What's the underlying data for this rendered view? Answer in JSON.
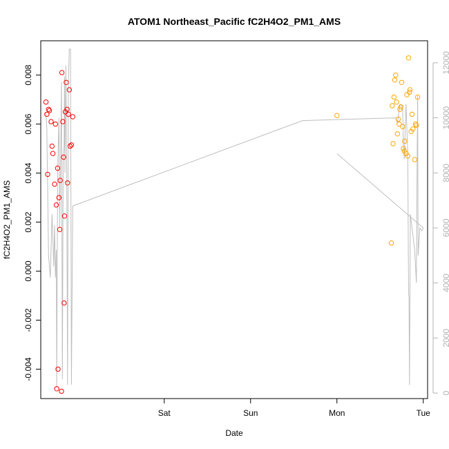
{
  "chart_data": {
    "type": "scatter",
    "title": "ATOM1 Northeast_Pacific fC2H4O2_PM1_AMS",
    "xlabel": "Date",
    "ylabel": "fC2H4O2_PM1_AMS",
    "x_ticks": [
      {
        "value": 1.0,
        "label": "Sat"
      },
      {
        "value": 2.0,
        "label": "Sun"
      },
      {
        "value": 3.0,
        "label": "Mon"
      },
      {
        "value": 4.0,
        "label": "Tue"
      }
    ],
    "y_left": {
      "lim": [
        -0.0052,
        0.0094
      ],
      "ticks": [
        -0.004,
        -0.002,
        0.0,
        0.002,
        0.004,
        0.006,
        0.008
      ],
      "tick_labels": [
        "-0.004",
        "-0.002",
        "0.000",
        "0.002",
        "0.004",
        "0.006",
        "0.008"
      ]
    },
    "y_right": {
      "lim": [
        -200,
        12800
      ],
      "ticks": [
        0,
        2000,
        4000,
        6000,
        8000,
        10000,
        12000
      ],
      "tick_labels": [
        "0",
        "2000",
        "4000",
        "6000",
        "8000",
        "10000",
        "12000"
      ]
    },
    "xlim": [
      -0.43,
      4.05
    ],
    "colors": {
      "red": "#ff0000",
      "orange": "#ffa500",
      "line": "#bebebe",
      "right_axis": "#b3b3b3"
    },
    "series": [
      {
        "color": "red",
        "points": [
          [
            -0.37,
            0.0069
          ],
          [
            -0.36,
            0.0064
          ],
          [
            -0.35,
            0.00395
          ],
          [
            -0.34,
            0.0066
          ],
          [
            -0.33,
            0.00655
          ],
          [
            -0.31,
            0.0061
          ],
          [
            -0.3,
            0.0051
          ],
          [
            -0.29,
            0.0048
          ],
          [
            -0.27,
            0.00355
          ],
          [
            -0.26,
            0.006
          ],
          [
            -0.25,
            0.0027
          ],
          [
            -0.245,
            -0.0048
          ],
          [
            -0.235,
            0.0042
          ],
          [
            -0.23,
            -0.004
          ],
          [
            -0.22,
            0.003
          ],
          [
            -0.21,
            0.0017
          ],
          [
            -0.205,
            0.0037
          ],
          [
            -0.19,
            -0.0049
          ],
          [
            -0.185,
            0.0081
          ],
          [
            -0.175,
            0.0061
          ],
          [
            -0.165,
            0.00465
          ],
          [
            -0.16,
            -0.0013
          ],
          [
            -0.155,
            0.00225
          ],
          [
            -0.145,
            0.0065
          ],
          [
            -0.135,
            0.0077
          ],
          [
            -0.125,
            0.0066
          ],
          [
            -0.12,
            0.0036
          ],
          [
            -0.11,
            0.0064
          ],
          [
            -0.1,
            0.0074
          ],
          [
            -0.09,
            0.0051
          ],
          [
            -0.075,
            0.00515
          ],
          [
            -0.06,
            0.0063
          ]
        ]
      },
      {
        "color": "orange",
        "points": [
          [
            3.0,
            0.00635
          ],
          [
            3.63,
            0.00115
          ],
          [
            3.64,
            0.00675
          ],
          [
            3.65,
            0.0052
          ],
          [
            3.66,
            0.0071
          ],
          [
            3.67,
            0.0078
          ],
          [
            3.68,
            0.008
          ],
          [
            3.69,
            0.0069
          ],
          [
            3.7,
            0.0056
          ],
          [
            3.71,
            0.0062
          ],
          [
            3.72,
            0.006
          ],
          [
            3.73,
            0.0066
          ],
          [
            3.74,
            0.0067
          ],
          [
            3.75,
            0.0077
          ],
          [
            3.76,
            0.0059
          ],
          [
            3.77,
            0.005
          ],
          [
            3.78,
            0.0049
          ],
          [
            3.785,
            0.0053
          ],
          [
            3.8,
            0.0048
          ],
          [
            3.81,
            0.0072
          ],
          [
            3.82,
            0.0047
          ],
          [
            3.83,
            0.0087
          ],
          [
            3.84,
            0.0073
          ],
          [
            3.845,
            0.0074
          ],
          [
            3.86,
            0.0057
          ],
          [
            3.87,
            0.0064
          ],
          [
            3.88,
            0.0058
          ],
          [
            3.9,
            0.00455
          ],
          [
            3.91,
            0.006
          ],
          [
            3.92,
            0.00595
          ],
          [
            3.935,
            0.0071
          ]
        ]
      }
    ],
    "line_series_right_axis": [
      [
        -0.37,
        10200
      ],
      [
        -0.36,
        9600
      ],
      [
        -0.34,
        5000
      ],
      [
        -0.32,
        4200
      ],
      [
        -0.3,
        6500
      ],
      [
        -0.28,
        4600
      ],
      [
        -0.27,
        6100
      ],
      [
        -0.26,
        4200
      ],
      [
        -0.25,
        5200
      ],
      [
        -0.245,
        200
      ],
      [
        -0.235,
        8000
      ],
      [
        -0.22,
        10000
      ],
      [
        -0.21,
        6000
      ],
      [
        -0.2,
        8600
      ],
      [
        -0.19,
        11300
      ],
      [
        -0.18,
        500
      ],
      [
        -0.17,
        8600
      ],
      [
        -0.16,
        9000
      ],
      [
        -0.155,
        11500
      ],
      [
        -0.15,
        8000
      ],
      [
        -0.14,
        11900
      ],
      [
        -0.13,
        8500
      ],
      [
        -0.12,
        300
      ],
      [
        -0.11,
        11200
      ],
      [
        -0.1,
        12500
      ],
      [
        -0.085,
        12500
      ],
      [
        -0.075,
        300
      ],
      [
        -0.06,
        6800
      ],
      [
        2.6,
        9900
      ],
      [
        3.68,
        10000
      ],
      [
        3.7,
        9800
      ],
      [
        3.73,
        10500
      ],
      [
        3.76,
        10400
      ],
      [
        3.77,
        9000
      ],
      [
        3.78,
        8500
      ],
      [
        3.8,
        10500
      ],
      [
        3.82,
        8700
      ],
      [
        3.83,
        3600
      ],
      [
        3.835,
        3500
      ],
      [
        3.84,
        300
      ],
      [
        3.85,
        6500
      ],
      [
        3.9,
        5200
      ],
      [
        3.92,
        4000
      ],
      [
        3.93,
        9000
      ],
      [
        3.935,
        10800
      ],
      [
        3.94,
        5000
      ],
      [
        3.96,
        6000
      ],
      [
        3.98,
        5900
      ],
      [
        4.0,
        6000
      ]
    ],
    "line_series_right_axis_2": [
      [
        3.0,
        8700
      ],
      [
        4.0,
        6000
      ]
    ]
  }
}
